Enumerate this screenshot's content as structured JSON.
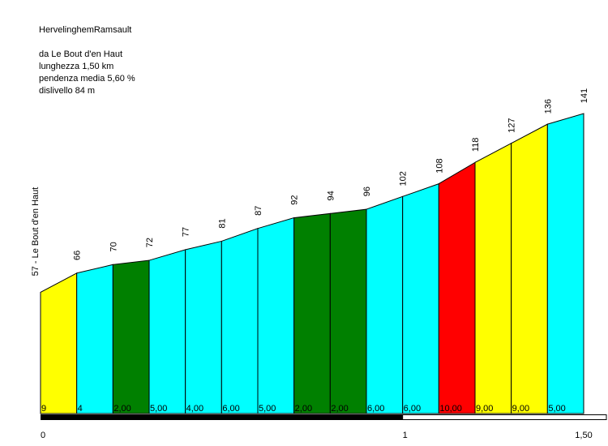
{
  "info": {
    "title": "HervelinghemRamsault",
    "from": "da Le Bout d'en Haut",
    "length": "lunghezza 1,50 km",
    "avg_grade": "pendenza media 5,60 %",
    "elevation_gain": "dislivello 84 m"
  },
  "chart_data": {
    "type": "area",
    "start_label": "57 - Le Bout d'en Haut",
    "x_km": [
      0,
      0.1,
      0.2,
      0.3,
      0.4,
      0.5,
      0.6,
      0.7,
      0.8,
      0.9,
      1.0,
      1.1,
      1.2,
      1.3,
      1.4,
      1.5
    ],
    "altitude_m": [
      57,
      66,
      70,
      72,
      77,
      81,
      87,
      92,
      94,
      96,
      102,
      108,
      118,
      127,
      136,
      141
    ],
    "altitude_labels": [
      "66",
      "70",
      "72",
      "77",
      "81",
      "87",
      "92",
      "94",
      "96",
      "102",
      "108",
      "118",
      "127",
      "136",
      "141"
    ],
    "segment_grades": [
      "9",
      "4",
      "2,00",
      "5,00",
      "4,00",
      "6,00",
      "5,00",
      "2,00",
      "2,00",
      "6,00",
      "6,00",
      "10,00",
      "9,00",
      "9,00",
      "5,00"
    ],
    "segment_colors": [
      "#ffff00",
      "#00ffff",
      "#008000",
      "#00ffff",
      "#00ffff",
      "#00ffff",
      "#00ffff",
      "#008000",
      "#008000",
      "#00ffff",
      "#00ffff",
      "#ff0000",
      "#ffff00",
      "#ffff00",
      "#00ffff"
    ],
    "x_tick_labels": [
      "0",
      "1",
      "1,50"
    ],
    "x_tick_values": [
      0,
      1,
      1.5
    ],
    "xlim": [
      0,
      1.5
    ],
    "y_range": [
      0,
      141
    ]
  }
}
